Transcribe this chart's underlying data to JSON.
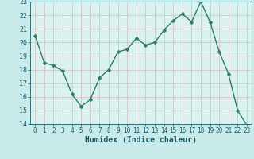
{
  "x": [
    0,
    1,
    2,
    3,
    4,
    5,
    6,
    7,
    8,
    9,
    10,
    11,
    12,
    13,
    14,
    15,
    16,
    17,
    18,
    19,
    20,
    21,
    22,
    23
  ],
  "y": [
    20.5,
    18.5,
    18.3,
    17.9,
    16.2,
    15.3,
    15.8,
    17.4,
    18.0,
    19.3,
    19.5,
    20.3,
    19.8,
    20.0,
    20.9,
    21.6,
    22.1,
    21.5,
    23.0,
    21.5,
    19.3,
    17.7,
    15.0,
    13.9
  ],
  "xlabel": "Humidex (Indice chaleur)",
  "ylim": [
    14,
    23
  ],
  "yticks": [
    14,
    15,
    16,
    17,
    18,
    19,
    20,
    21,
    22,
    23
  ],
  "xticks": [
    0,
    1,
    2,
    3,
    4,
    5,
    6,
    7,
    8,
    9,
    10,
    11,
    12,
    13,
    14,
    15,
    16,
    17,
    18,
    19,
    20,
    21,
    22,
    23
  ],
  "line_color": "#2d7a6a",
  "marker_color": "#2d7a6a",
  "bg_color": "#c8eae8",
  "grid_color_major": "#b8d4d0",
  "grid_color_minor": "#d4bcbc",
  "plot_bg": "#daf2f0",
  "xlabel_color": "#1a5a6a",
  "tick_color": "#1a5a6a",
  "marker_size": 2.5,
  "line_width": 1.0,
  "tick_fontsize": 5.5,
  "xlabel_fontsize": 7.0
}
